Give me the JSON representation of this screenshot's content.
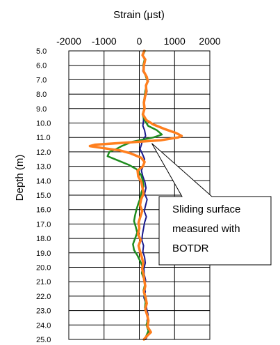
{
  "chart_data": {
    "type": "line",
    "title": "Strain (μst)",
    "xlabel": "",
    "ylabel": "Depth (m)",
    "xlim": [
      -2000,
      2000
    ],
    "ylim": [
      5.0,
      25.0
    ],
    "y_inverted": true,
    "x_ticks": [
      "-2000",
      "-1000",
      "0",
      "1000",
      "2000"
    ],
    "x_tick_values": [
      -2000,
      -1000,
      0,
      1000,
      2000
    ],
    "y_ticks": [
      "5.0",
      "6.0",
      "7.0",
      "8.0",
      "9.0",
      "10.0",
      "11.0",
      "12.0",
      "13.0",
      "14.0",
      "15.0",
      "16.0",
      "17.0",
      "18.0",
      "19.0",
      "20.0",
      "21.0",
      "22.0",
      "23.0",
      "24.0",
      "25.0"
    ],
    "grid": true,
    "annotation": {
      "lines": [
        "Sliding surface",
        "measured with",
        "BOTDR"
      ],
      "points_to": {
        "strain": 0,
        "depth": 11.7
      }
    },
    "series": [
      {
        "color": "#1a1a8c",
        "points": [
          [
            5.0,
            150
          ],
          [
            5.3,
            80
          ],
          [
            5.6,
            180
          ],
          [
            6.0,
            120
          ],
          [
            6.4,
            100
          ],
          [
            6.8,
            200
          ],
          [
            7.1,
            260
          ],
          [
            7.4,
            180
          ],
          [
            7.8,
            220
          ],
          [
            8.2,
            170
          ],
          [
            8.6,
            140
          ],
          [
            9.0,
            160
          ],
          [
            9.4,
            110
          ],
          [
            9.8,
            120
          ],
          [
            10.2,
            100
          ],
          [
            10.5,
            150
          ],
          [
            10.9,
            180
          ],
          [
            11.2,
            90
          ],
          [
            11.5,
            60
          ],
          [
            11.8,
            20
          ],
          [
            12.1,
            80
          ],
          [
            12.5,
            150
          ],
          [
            12.9,
            120
          ],
          [
            13.3,
            60
          ],
          [
            13.7,
            100
          ],
          [
            14.1,
            160
          ],
          [
            14.5,
            190
          ],
          [
            14.9,
            150
          ],
          [
            15.3,
            220
          ],
          [
            15.7,
            180
          ],
          [
            16.1,
            140
          ],
          [
            16.5,
            200
          ],
          [
            16.9,
            150
          ],
          [
            17.3,
            120
          ],
          [
            17.7,
            90
          ],
          [
            18.1,
            70
          ],
          [
            18.5,
            120
          ],
          [
            18.9,
            100
          ],
          [
            19.3,
            150
          ],
          [
            19.7,
            170
          ],
          [
            20.1,
            130
          ],
          [
            20.5,
            140
          ],
          [
            20.9,
            180
          ],
          [
            21.3,
            150
          ],
          [
            21.7,
            170
          ],
          [
            22.1,
            130
          ],
          [
            22.5,
            190
          ],
          [
            22.9,
            210
          ],
          [
            23.3,
            250
          ],
          [
            23.7,
            220
          ],
          [
            24.1,
            240
          ],
          [
            24.5,
            280
          ],
          [
            24.8,
            220
          ],
          [
            25.0,
            180
          ]
        ]
      },
      {
        "color": "#1e8c1e",
        "points": [
          [
            5.0,
            160
          ],
          [
            5.3,
            100
          ],
          [
            5.6,
            150
          ],
          [
            6.0,
            110
          ],
          [
            6.4,
            130
          ],
          [
            6.8,
            190
          ],
          [
            7.1,
            230
          ],
          [
            7.4,
            200
          ],
          [
            7.8,
            170
          ],
          [
            8.2,
            150
          ],
          [
            8.6,
            120
          ],
          [
            9.0,
            140
          ],
          [
            9.4,
            90
          ],
          [
            9.8,
            150
          ],
          [
            10.2,
            250
          ],
          [
            10.5,
            500
          ],
          [
            10.8,
            640
          ],
          [
            11.0,
            400
          ],
          [
            11.3,
            -200
          ],
          [
            11.6,
            -500
          ],
          [
            11.8,
            -650
          ],
          [
            12.0,
            -850
          ],
          [
            12.3,
            -900
          ],
          [
            12.6,
            -600
          ],
          [
            12.9,
            -300
          ],
          [
            13.2,
            -80
          ],
          [
            13.6,
            50
          ],
          [
            14.0,
            100
          ],
          [
            14.4,
            120
          ],
          [
            14.8,
            60
          ],
          [
            15.2,
            30
          ],
          [
            15.6,
            -30
          ],
          [
            16.0,
            -80
          ],
          [
            16.4,
            -120
          ],
          [
            16.8,
            -150
          ],
          [
            17.2,
            -100
          ],
          [
            17.6,
            -60
          ],
          [
            18.0,
            -120
          ],
          [
            18.4,
            -180
          ],
          [
            18.8,
            -150
          ],
          [
            19.2,
            -50
          ],
          [
            19.6,
            30
          ],
          [
            20.0,
            100
          ],
          [
            20.4,
            70
          ],
          [
            20.8,
            130
          ],
          [
            21.2,
            160
          ],
          [
            21.6,
            120
          ],
          [
            22.0,
            150
          ],
          [
            22.4,
            180
          ],
          [
            22.8,
            160
          ],
          [
            23.2,
            210
          ],
          [
            23.6,
            250
          ],
          [
            24.0,
            200
          ],
          [
            24.4,
            260
          ],
          [
            24.8,
            190
          ],
          [
            25.0,
            150
          ]
        ]
      },
      {
        "color": "#ff7f1e",
        "points": [
          [
            5.0,
            140
          ],
          [
            5.3,
            90
          ],
          [
            5.6,
            170
          ],
          [
            6.0,
            130
          ],
          [
            6.4,
            120
          ],
          [
            6.8,
            210
          ],
          [
            7.1,
            240
          ],
          [
            7.4,
            190
          ],
          [
            7.8,
            200
          ],
          [
            8.2,
            160
          ],
          [
            8.6,
            130
          ],
          [
            9.0,
            150
          ],
          [
            9.4,
            100
          ],
          [
            9.8,
            200
          ],
          [
            10.1,
            400
          ],
          [
            10.4,
            700
          ],
          [
            10.7,
            1050
          ],
          [
            10.9,
            1200
          ],
          [
            11.0,
            1100
          ],
          [
            11.2,
            600
          ],
          [
            11.35,
            -300
          ],
          [
            11.5,
            -1250
          ],
          [
            11.6,
            -1400
          ],
          [
            11.75,
            -1000
          ],
          [
            11.9,
            -550
          ],
          [
            12.1,
            -250
          ],
          [
            12.4,
            50
          ],
          [
            12.7,
            150
          ],
          [
            13.0,
            100
          ],
          [
            13.3,
            -50
          ],
          [
            13.7,
            -30
          ],
          [
            14.1,
            60
          ],
          [
            14.5,
            90
          ],
          [
            14.9,
            120
          ],
          [
            15.3,
            50
          ],
          [
            15.7,
            20
          ],
          [
            16.1,
            80
          ],
          [
            16.5,
            30
          ],
          [
            16.9,
            -20
          ],
          [
            17.3,
            0
          ],
          [
            17.7,
            -40
          ],
          [
            18.1,
            40
          ],
          [
            18.5,
            -20
          ],
          [
            18.9,
            20
          ],
          [
            19.3,
            70
          ],
          [
            19.7,
            110
          ],
          [
            20.1,
            80
          ],
          [
            20.5,
            120
          ],
          [
            20.9,
            140
          ],
          [
            21.3,
            170
          ],
          [
            21.7,
            130
          ],
          [
            22.1,
            180
          ],
          [
            22.5,
            210
          ],
          [
            22.9,
            170
          ],
          [
            23.3,
            220
          ],
          [
            23.7,
            260
          ],
          [
            24.1,
            230
          ],
          [
            24.5,
            330
          ],
          [
            24.8,
            200
          ],
          [
            25.0,
            130
          ]
        ]
      }
    ]
  }
}
